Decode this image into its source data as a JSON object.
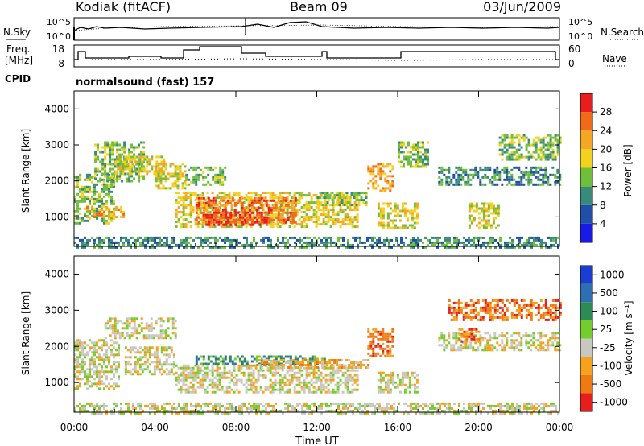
{
  "header": {
    "radar": "Kodiak (fitACF)",
    "beam": "Beam 09",
    "date": "03/Jun/2009"
  },
  "noise_panel": {
    "left_label": "N.Sky",
    "left_ticks": [
      "10^5",
      "10^0"
    ],
    "right_ticks": [
      "10^5",
      "10^0"
    ],
    "right_label": "N.Search"
  },
  "freq_panel": {
    "left_label_1": "Freq.",
    "left_label_2": "[MHz]",
    "left_ticks": [
      "18",
      "8"
    ],
    "right_ticks": [
      "60",
      "0"
    ],
    "right_label": "Nave"
  },
  "cpid": {
    "label": "CPID",
    "value": "normalsound (fast) 157"
  },
  "colors": {
    "power": [
      "#1a1ae6",
      "#1f4fa8",
      "#3a8a7a",
      "#6fbf3a",
      "#f2d21e",
      "#f5a623",
      "#ef6b1a",
      "#e81e1e"
    ],
    "velocity": [
      "#1a3fd0",
      "#2d6fb0",
      "#2e8b57",
      "#74cc2e",
      "#c8c8c0",
      "#f6a21c",
      "#ef7a12",
      "#e81e1e"
    ]
  },
  "chart_data": [
    {
      "type": "heatmap",
      "title": "",
      "quantity": "Power",
      "xlabel": "",
      "ylabel": "Slant Range [km]",
      "x_ticks": [
        "00:00",
        "04:00",
        "08:00",
        "12:00",
        "16:00",
        "20:00",
        "00:00"
      ],
      "xlim_hours": [
        0,
        24
      ],
      "ylim": [
        180,
        4500
      ],
      "y_ticks": [
        "1000",
        "2000",
        "3000",
        "4000"
      ],
      "y_tick_values": [
        1000,
        2000,
        3000,
        4000
      ],
      "colorbar_label": "Power [dB]",
      "colorbar_ticks": [
        "4",
        "8",
        "12",
        "16",
        "20",
        "24",
        "28"
      ],
      "colorbar_range": [
        0,
        32
      ],
      "regions": [
        {
          "x0": 0.0,
          "x1": 2.0,
          "y0": 800,
          "y1": 2200,
          "level": 3
        },
        {
          "x0": 1.0,
          "x1": 3.5,
          "y0": 2000,
          "y1": 3100,
          "level": 3
        },
        {
          "x0": 2.0,
          "x1": 4.5,
          "y0": 2200,
          "y1": 2700,
          "level": 4
        },
        {
          "x0": 0.6,
          "x1": 2.4,
          "y0": 1000,
          "y1": 1300,
          "level": 5
        },
        {
          "x0": 4.0,
          "x1": 5.5,
          "y0": 1800,
          "y1": 2500,
          "level": 4
        },
        {
          "x0": 5.5,
          "x1": 7.5,
          "y0": 1900,
          "y1": 2400,
          "level": 3
        },
        {
          "x0": 5.0,
          "x1": 14.0,
          "y0": 750,
          "y1": 1700,
          "level": 4
        },
        {
          "x0": 6.0,
          "x1": 11.0,
          "y0": 850,
          "y1": 1550,
          "level": 6
        },
        {
          "x0": 6.5,
          "x1": 9.5,
          "y0": 800,
          "y1": 1150,
          "level": 7
        },
        {
          "x0": 12.0,
          "x1": 14.5,
          "y0": 1300,
          "y1": 1700,
          "level": 3
        },
        {
          "x0": 14.5,
          "x1": 15.8,
          "y0": 1700,
          "y1": 2500,
          "level": 5
        },
        {
          "x0": 15.0,
          "x1": 17.0,
          "y0": 700,
          "y1": 1400,
          "level": 4
        },
        {
          "x0": 16.0,
          "x1": 17.5,
          "y0": 2400,
          "y1": 3100,
          "level": 3
        },
        {
          "x0": 18.0,
          "x1": 24.0,
          "y0": 1900,
          "y1": 2400,
          "level": 2
        },
        {
          "x0": 21.0,
          "x1": 24.0,
          "y0": 2600,
          "y1": 3300,
          "level": 3
        },
        {
          "x0": 19.5,
          "x1": 21.0,
          "y0": 700,
          "y1": 1400,
          "level": 4
        },
        {
          "x0": 0.0,
          "x1": 24.0,
          "y0": 180,
          "y1": 450,
          "level": 2
        }
      ]
    },
    {
      "type": "heatmap",
      "title": "",
      "quantity": "Velocity",
      "xlabel": "Time UT",
      "ylabel": "Slant Range [km]",
      "x_ticks": [
        "00:00",
        "04:00",
        "08:00",
        "12:00",
        "16:00",
        "20:00",
        "00:00"
      ],
      "xlim_hours": [
        0,
        24
      ],
      "ylim": [
        180,
        4500
      ],
      "y_ticks": [
        "1000",
        "2000",
        "3000",
        "4000"
      ],
      "y_tick_values": [
        1000,
        2000,
        3000,
        4000
      ],
      "colorbar_label": "Velocity [m s⁻¹]",
      "colorbar_ticks": [
        "1000",
        "500",
        "100",
        "25",
        "-25",
        "-100",
        "-500",
        "-1000"
      ],
      "regions": [
        {
          "x0": 0.0,
          "x1": 2.2,
          "y0": 800,
          "y1": 2200,
          "level": 4
        },
        {
          "x0": 1.5,
          "x1": 5.0,
          "y0": 2200,
          "y1": 2800,
          "level": 4
        },
        {
          "x0": 2.5,
          "x1": 5.0,
          "y0": 1200,
          "y1": 2000,
          "level": 4
        },
        {
          "x0": 5.0,
          "x1": 14.0,
          "y0": 750,
          "y1": 1500,
          "level": 4
        },
        {
          "x0": 6.0,
          "x1": 12.5,
          "y0": 1500,
          "y1": 1750,
          "level": 2
        },
        {
          "x0": 9.0,
          "x1": 14.5,
          "y0": 1400,
          "y1": 1650,
          "level": 5
        },
        {
          "x0": 14.5,
          "x1": 15.8,
          "y0": 1700,
          "y1": 2500,
          "level": 6
        },
        {
          "x0": 15.0,
          "x1": 17.0,
          "y0": 700,
          "y1": 1300,
          "level": 4
        },
        {
          "x0": 18.0,
          "x1": 24.0,
          "y0": 1900,
          "y1": 2400,
          "level": 4
        },
        {
          "x0": 18.5,
          "x1": 24.0,
          "y0": 2700,
          "y1": 3300,
          "level": 6
        },
        {
          "x0": 19.0,
          "x1": 20.0,
          "y0": 2100,
          "y1": 2500,
          "level": 6
        },
        {
          "x0": 0.0,
          "x1": 24.0,
          "y0": 180,
          "y1": 450,
          "level": 4
        }
      ]
    }
  ]
}
